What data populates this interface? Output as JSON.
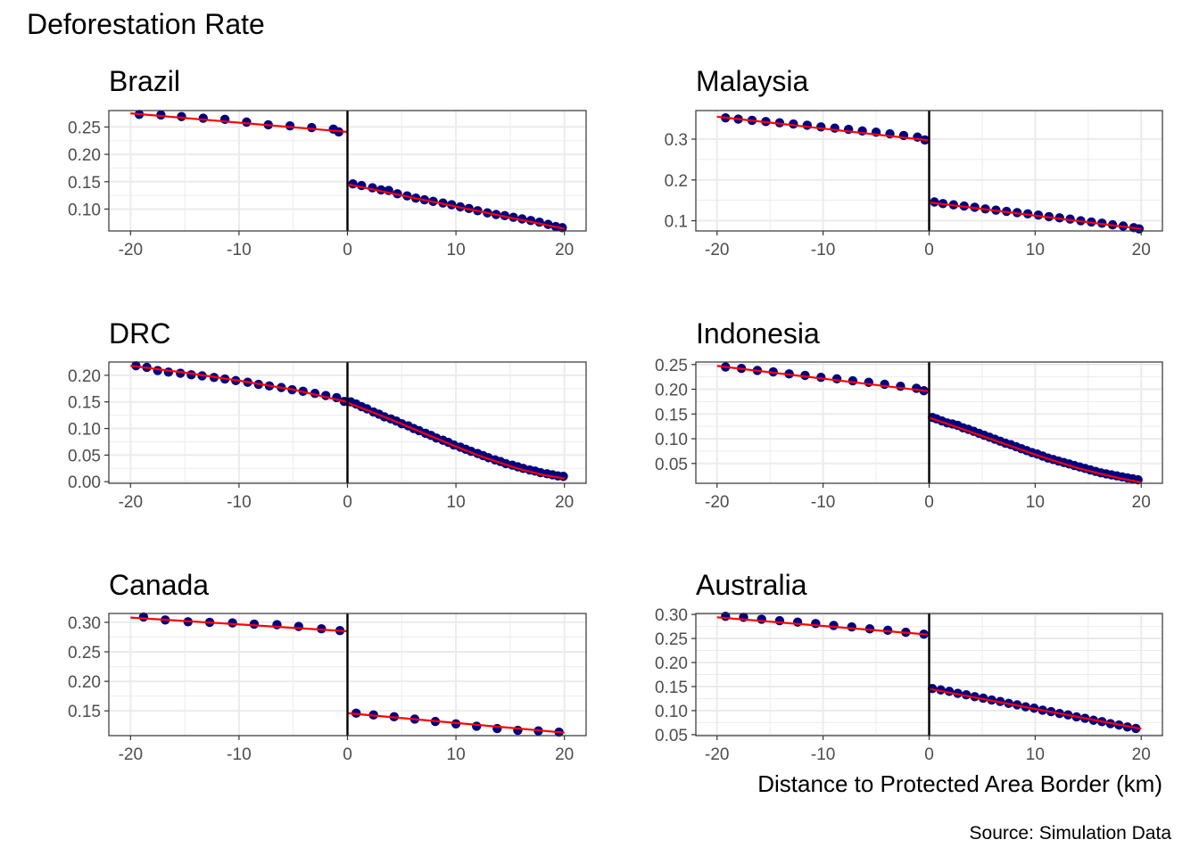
{
  "figure": {
    "title": "Deforestation Rate",
    "xlabel": "Distance to Protected Area Border (km)",
    "caption": "Source: Simulation Data"
  },
  "colors": {
    "points": "#000080",
    "fit_line": "#ff0000",
    "cutoff_line": "#000000",
    "grid": "#ebebeb",
    "panel_border": "#333333",
    "axis_text": "#4d4d4d"
  },
  "chart_data": [
    {
      "type": "scatter",
      "title": "Brazil",
      "xlim": [
        -22,
        22
      ],
      "ylim": [
        0.06,
        0.28
      ],
      "x_ticks": [
        -20,
        -10,
        0,
        10,
        20
      ],
      "x_tick_labels": [
        "-20",
        "-10",
        "0",
        "10",
        "20"
      ],
      "y_ticks": [
        0.1,
        0.15,
        0.2,
        0.25
      ],
      "y_tick_labels": [
        "0.10",
        "0.15",
        "0.20",
        "0.25"
      ],
      "cutoff": 0,
      "points": [
        [
          -19.2,
          0.273
        ],
        [
          -17.2,
          0.272
        ],
        [
          -15.3,
          0.269
        ],
        [
          -13.3,
          0.266
        ],
        [
          -11.3,
          0.264
        ],
        [
          -9.3,
          0.259
        ],
        [
          -7.3,
          0.254
        ],
        [
          -5.3,
          0.252
        ],
        [
          -3.3,
          0.249
        ],
        [
          -1.3,
          0.246
        ],
        [
          -0.8,
          0.241
        ],
        [
          0.5,
          0.146
        ],
        [
          1.3,
          0.143
        ],
        [
          2.3,
          0.139
        ],
        [
          3.1,
          0.135
        ],
        [
          3.8,
          0.134
        ],
        [
          4.6,
          0.128
        ],
        [
          5.5,
          0.124
        ],
        [
          6.3,
          0.12
        ],
        [
          7.1,
          0.117
        ],
        [
          7.9,
          0.114
        ],
        [
          8.8,
          0.111
        ],
        [
          9.6,
          0.108
        ],
        [
          10.4,
          0.104
        ],
        [
          11.2,
          0.101
        ],
        [
          12.0,
          0.097
        ],
        [
          12.9,
          0.093
        ],
        [
          13.7,
          0.09
        ],
        [
          14.5,
          0.088
        ],
        [
          15.3,
          0.085
        ],
        [
          16.1,
          0.082
        ],
        [
          16.9,
          0.079
        ],
        [
          17.7,
          0.076
        ],
        [
          18.5,
          0.072
        ],
        [
          19.2,
          0.068
        ],
        [
          19.8,
          0.066
        ]
      ],
      "fit_left": [
        [
          -20,
          0.275
        ],
        [
          -0.05,
          0.241
        ]
      ],
      "fit_right": [
        [
          0.05,
          0.145
        ],
        [
          20,
          0.064
        ]
      ]
    },
    {
      "type": "scatter",
      "title": "Malaysia",
      "xlim": [
        -22,
        22
      ],
      "ylim": [
        0.075,
        0.37
      ],
      "x_ticks": [
        -20,
        -10,
        0,
        10,
        20
      ],
      "x_tick_labels": [
        "-20",
        "-10",
        "0",
        "10",
        "20"
      ],
      "y_ticks": [
        0.1,
        0.2,
        0.3
      ],
      "y_tick_labels": [
        "0.1",
        "0.2",
        "0.3"
      ],
      "cutoff": 0,
      "points": [
        [
          -19.2,
          0.352
        ],
        [
          -18.0,
          0.349
        ],
        [
          -16.7,
          0.346
        ],
        [
          -15.4,
          0.343
        ],
        [
          -14.1,
          0.34
        ],
        [
          -12.8,
          0.337
        ],
        [
          -11.5,
          0.334
        ],
        [
          -10.2,
          0.33
        ],
        [
          -8.9,
          0.327
        ],
        [
          -7.6,
          0.324
        ],
        [
          -6.3,
          0.32
        ],
        [
          -5.0,
          0.317
        ],
        [
          -3.7,
          0.313
        ],
        [
          -2.4,
          0.309
        ],
        [
          -1.1,
          0.305
        ],
        [
          -0.4,
          0.298
        ],
        [
          0.5,
          0.146
        ],
        [
          1.3,
          0.142
        ],
        [
          2.3,
          0.139
        ],
        [
          3.3,
          0.136
        ],
        [
          4.3,
          0.133
        ],
        [
          5.3,
          0.129
        ],
        [
          6.3,
          0.126
        ],
        [
          7.3,
          0.123
        ],
        [
          8.3,
          0.12
        ],
        [
          9.3,
          0.117
        ],
        [
          10.3,
          0.114
        ],
        [
          11.3,
          0.11
        ],
        [
          12.3,
          0.107
        ],
        [
          13.3,
          0.104
        ],
        [
          14.3,
          0.1
        ],
        [
          15.3,
          0.097
        ],
        [
          16.3,
          0.094
        ],
        [
          17.3,
          0.09
        ],
        [
          18.3,
          0.087
        ],
        [
          19.3,
          0.083
        ],
        [
          19.8,
          0.08
        ]
      ],
      "fit_left": [
        [
          -20,
          0.355
        ],
        [
          -0.05,
          0.297
        ]
      ],
      "fit_right": [
        [
          0.05,
          0.145
        ],
        [
          20,
          0.08
        ]
      ]
    },
    {
      "type": "scatter",
      "title": "DRC",
      "xlim": [
        -22,
        22
      ],
      "ylim": [
        -0.003,
        0.225
      ],
      "x_ticks": [
        -20,
        -10,
        0,
        10,
        20
      ],
      "x_tick_labels": [
        "-20",
        "-10",
        "0",
        "10",
        "20"
      ],
      "y_ticks": [
        0.0,
        0.05,
        0.1,
        0.15,
        0.2
      ],
      "y_tick_labels": [
        "0.00",
        "0.05",
        "0.10",
        "0.15",
        "0.20"
      ],
      "cutoff": 0,
      "points": [
        [
          -19.5,
          0.218
        ],
        [
          -18.5,
          0.215
        ],
        [
          -17.5,
          0.209
        ],
        [
          -16.5,
          0.206
        ],
        [
          -15.4,
          0.204
        ],
        [
          -14.4,
          0.201
        ],
        [
          -13.4,
          0.199
        ],
        [
          -12.3,
          0.196
        ],
        [
          -11.3,
          0.193
        ],
        [
          -10.3,
          0.19
        ],
        [
          -9.2,
          0.187
        ],
        [
          -8.2,
          0.183
        ],
        [
          -7.2,
          0.18
        ],
        [
          -6.1,
          0.177
        ],
        [
          -5.1,
          0.173
        ],
        [
          -4.1,
          0.17
        ],
        [
          -3.0,
          0.166
        ],
        [
          -2.0,
          0.162
        ],
        [
          -1.0,
          0.158
        ],
        [
          -0.3,
          0.151
        ],
        [
          0.3,
          0.15
        ],
        [
          0.8,
          0.146
        ],
        [
          1.3,
          0.141
        ],
        [
          1.8,
          0.137
        ],
        [
          2.4,
          0.131
        ],
        [
          2.9,
          0.127
        ],
        [
          3.4,
          0.122
        ],
        [
          4.0,
          0.118
        ],
        [
          4.5,
          0.114
        ],
        [
          5.0,
          0.109
        ],
        [
          5.6,
          0.105
        ],
        [
          6.1,
          0.1
        ],
        [
          6.6,
          0.096
        ],
        [
          7.2,
          0.091
        ],
        [
          7.7,
          0.087
        ],
        [
          8.2,
          0.082
        ],
        [
          8.8,
          0.078
        ],
        [
          9.3,
          0.074
        ],
        [
          9.8,
          0.069
        ],
        [
          10.4,
          0.065
        ],
        [
          10.9,
          0.061
        ],
        [
          11.4,
          0.057
        ],
        [
          12.0,
          0.053
        ],
        [
          12.5,
          0.049
        ],
        [
          13.0,
          0.045
        ],
        [
          13.6,
          0.041
        ],
        [
          14.1,
          0.038
        ],
        [
          14.6,
          0.034
        ],
        [
          15.2,
          0.031
        ],
        [
          15.7,
          0.028
        ],
        [
          16.2,
          0.025
        ],
        [
          16.8,
          0.022
        ],
        [
          17.3,
          0.02
        ],
        [
          17.8,
          0.017
        ],
        [
          18.4,
          0.015
        ],
        [
          18.9,
          0.013
        ],
        [
          19.4,
          0.011
        ],
        [
          19.9,
          0.01
        ]
      ],
      "fit_left": [
        [
          -20,
          0.218
        ],
        [
          -15,
          0.205
        ],
        [
          -10,
          0.19
        ],
        [
          -5,
          0.173
        ],
        [
          -0.05,
          0.15
        ]
      ],
      "fit_right": [
        [
          0.05,
          0.148
        ],
        [
          2,
          0.133
        ],
        [
          4,
          0.117
        ],
        [
          6,
          0.1
        ],
        [
          8,
          0.083
        ],
        [
          10,
          0.066
        ],
        [
          12,
          0.05
        ],
        [
          14,
          0.036
        ],
        [
          16,
          0.023
        ],
        [
          18,
          0.013
        ],
        [
          20,
          0.006
        ]
      ]
    },
    {
      "type": "scatter",
      "title": "Indonesia",
      "xlim": [
        -22,
        22
      ],
      "ylim": [
        0.01,
        0.255
      ],
      "x_ticks": [
        -20,
        -10,
        0,
        10,
        20
      ],
      "x_tick_labels": [
        "-20",
        "-10",
        "0",
        "10",
        "20"
      ],
      "y_ticks": [
        0.05,
        0.1,
        0.15,
        0.2,
        0.25
      ],
      "y_tick_labels": [
        "0.05",
        "0.10",
        "0.15",
        "0.20",
        "0.25"
      ],
      "cutoff": 0,
      "points": [
        [
          -19.2,
          0.245
        ],
        [
          -17.7,
          0.242
        ],
        [
          -16.2,
          0.238
        ],
        [
          -14.7,
          0.235
        ],
        [
          -13.2,
          0.231
        ],
        [
          -11.7,
          0.228
        ],
        [
          -10.2,
          0.224
        ],
        [
          -8.7,
          0.221
        ],
        [
          -7.2,
          0.217
        ],
        [
          -5.7,
          0.214
        ],
        [
          -4.2,
          0.21
        ],
        [
          -2.7,
          0.206
        ],
        [
          -1.2,
          0.202
        ],
        [
          -0.5,
          0.197
        ],
        [
          0.3,
          0.143
        ],
        [
          0.7,
          0.14
        ],
        [
          1.2,
          0.136
        ],
        [
          1.7,
          0.132
        ],
        [
          2.2,
          0.13
        ],
        [
          2.7,
          0.127
        ],
        [
          3.2,
          0.122
        ],
        [
          3.7,
          0.119
        ],
        [
          4.2,
          0.115
        ],
        [
          4.7,
          0.111
        ],
        [
          5.2,
          0.107
        ],
        [
          5.7,
          0.103
        ],
        [
          6.2,
          0.099
        ],
        [
          6.7,
          0.095
        ],
        [
          7.2,
          0.091
        ],
        [
          7.7,
          0.088
        ],
        [
          8.2,
          0.084
        ],
        [
          8.7,
          0.08
        ],
        [
          9.2,
          0.076
        ],
        [
          9.7,
          0.072
        ],
        [
          10.2,
          0.069
        ],
        [
          10.7,
          0.065
        ],
        [
          11.2,
          0.061
        ],
        [
          11.7,
          0.058
        ],
        [
          12.2,
          0.055
        ],
        [
          12.7,
          0.052
        ],
        [
          13.2,
          0.049
        ],
        [
          13.7,
          0.046
        ],
        [
          14.2,
          0.043
        ],
        [
          14.7,
          0.04
        ],
        [
          15.2,
          0.037
        ],
        [
          15.7,
          0.034
        ],
        [
          16.2,
          0.031
        ],
        [
          16.7,
          0.029
        ],
        [
          17.2,
          0.027
        ],
        [
          17.7,
          0.025
        ],
        [
          18.2,
          0.023
        ],
        [
          18.7,
          0.021
        ],
        [
          19.2,
          0.019
        ],
        [
          19.7,
          0.017
        ]
      ],
      "fit_left": [
        [
          -20,
          0.247
        ],
        [
          -0.05,
          0.196
        ]
      ],
      "fit_right": [
        [
          0.05,
          0.142
        ],
        [
          2,
          0.128
        ],
        [
          4,
          0.113
        ],
        [
          6,
          0.098
        ],
        [
          8,
          0.083
        ],
        [
          10,
          0.068
        ],
        [
          12,
          0.054
        ],
        [
          14,
          0.041
        ],
        [
          16,
          0.03
        ],
        [
          18,
          0.02
        ],
        [
          20,
          0.012
        ]
      ]
    },
    {
      "type": "scatter",
      "title": "Canada",
      "xlim": [
        -22,
        22
      ],
      "ylim": [
        0.108,
        0.315
      ],
      "x_ticks": [
        -20,
        -10,
        0,
        10,
        20
      ],
      "x_tick_labels": [
        "-20",
        "-10",
        "0",
        "10",
        "20"
      ],
      "y_ticks": [
        0.15,
        0.2,
        0.25,
        0.3
      ],
      "y_tick_labels": [
        "0.15",
        "0.20",
        "0.25",
        "0.30"
      ],
      "cutoff": 0,
      "points": [
        [
          -18.8,
          0.309
        ],
        [
          -16.8,
          0.304
        ],
        [
          -14.7,
          0.301
        ],
        [
          -12.7,
          0.3
        ],
        [
          -10.6,
          0.299
        ],
        [
          -8.6,
          0.297
        ],
        [
          -6.5,
          0.296
        ],
        [
          -4.5,
          0.293
        ],
        [
          -2.4,
          0.289
        ],
        [
          -0.7,
          0.286
        ],
        [
          0.8,
          0.146
        ],
        [
          2.4,
          0.143
        ],
        [
          4.3,
          0.14
        ],
        [
          6.2,
          0.136
        ],
        [
          8.1,
          0.132
        ],
        [
          10.0,
          0.128
        ],
        [
          11.9,
          0.124
        ],
        [
          13.8,
          0.12
        ],
        [
          15.7,
          0.117
        ],
        [
          17.6,
          0.116
        ],
        [
          19.5,
          0.114
        ]
      ],
      "fit_left": [
        [
          -20,
          0.308
        ],
        [
          -0.05,
          0.285
        ]
      ],
      "fit_right": [
        [
          0.05,
          0.146
        ],
        [
          20,
          0.113
        ]
      ]
    },
    {
      "type": "scatter",
      "title": "Australia",
      "xlim": [
        -22,
        22
      ],
      "ylim": [
        0.048,
        0.302
      ],
      "x_ticks": [
        -20,
        -10,
        0,
        10,
        20
      ],
      "x_tick_labels": [
        "-20",
        "-10",
        "0",
        "10",
        "20"
      ],
      "y_ticks": [
        0.05,
        0.1,
        0.15,
        0.2,
        0.25,
        0.3
      ],
      "y_tick_labels": [
        "0.05",
        "0.10",
        "0.15",
        "0.20",
        "0.25",
        "0.30"
      ],
      "cutoff": 0,
      "points": [
        [
          -19.2,
          0.296
        ],
        [
          -17.5,
          0.294
        ],
        [
          -15.8,
          0.29
        ],
        [
          -14.1,
          0.287
        ],
        [
          -12.4,
          0.284
        ],
        [
          -10.7,
          0.281
        ],
        [
          -9.0,
          0.277
        ],
        [
          -7.3,
          0.274
        ],
        [
          -5.6,
          0.27
        ],
        [
          -3.9,
          0.267
        ],
        [
          -2.2,
          0.263
        ],
        [
          -0.5,
          0.259
        ],
        [
          0.3,
          0.146
        ],
        [
          1.1,
          0.143
        ],
        [
          1.9,
          0.14
        ],
        [
          2.7,
          0.136
        ],
        [
          3.5,
          0.133
        ],
        [
          4.3,
          0.129
        ],
        [
          5.1,
          0.126
        ],
        [
          5.9,
          0.122
        ],
        [
          6.7,
          0.119
        ],
        [
          7.5,
          0.115
        ],
        [
          8.3,
          0.112
        ],
        [
          9.1,
          0.108
        ],
        [
          9.9,
          0.105
        ],
        [
          10.7,
          0.101
        ],
        [
          11.5,
          0.098
        ],
        [
          12.3,
          0.094
        ],
        [
          13.1,
          0.091
        ],
        [
          13.9,
          0.087
        ],
        [
          14.7,
          0.084
        ],
        [
          15.5,
          0.08
        ],
        [
          16.3,
          0.077
        ],
        [
          17.1,
          0.073
        ],
        [
          17.9,
          0.07
        ],
        [
          18.7,
          0.066
        ],
        [
          19.5,
          0.063
        ]
      ],
      "fit_left": [
        [
          -20,
          0.294
        ],
        [
          -0.05,
          0.258
        ]
      ],
      "fit_right": [
        [
          0.05,
          0.145
        ],
        [
          20,
          0.062
        ]
      ]
    }
  ]
}
